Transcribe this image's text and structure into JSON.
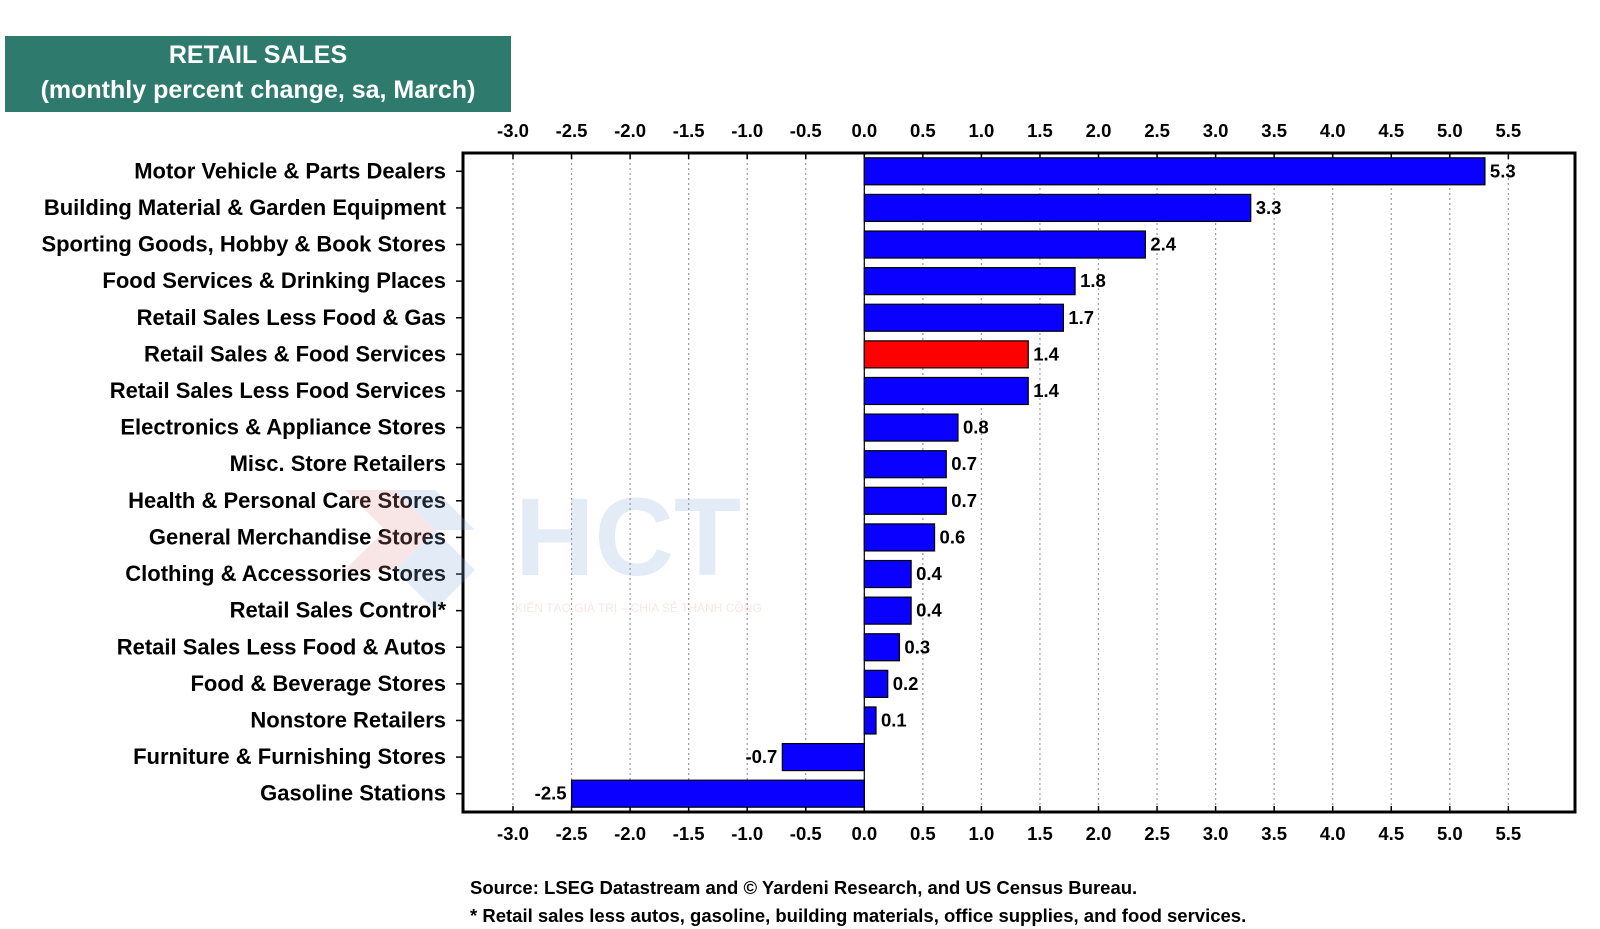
{
  "chart_data": {
    "type": "bar",
    "orientation": "horizontal",
    "title": "RETAIL SALES",
    "subtitle": "(monthly percent change, sa,  March)",
    "categories": [
      "Motor Vehicle & Parts Dealers",
      "Building Material & Garden Equipment",
      "Sporting Goods, Hobby & Book Stores",
      "Food Services & Drinking Places",
      "Retail Sales Less Food & Gas",
      "Retail Sales & Food Services",
      "Retail Sales Less Food Services",
      "Electronics & Appliance Stores",
      "Misc. Store Retailers",
      "Health & Personal Care Stores",
      "General Merchandise Stores",
      "Clothing & Accessories Stores",
      "Retail Sales Control*",
      "Retail Sales Less Food & Autos",
      "Food & Beverage Stores",
      "Nonstore Retailers",
      "Furniture & Furnishing Stores",
      "Gasoline Stations"
    ],
    "values": [
      5.3,
      3.3,
      2.4,
      1.8,
      1.7,
      1.4,
      1.4,
      0.8,
      0.7,
      0.7,
      0.6,
      0.4,
      0.4,
      0.3,
      0.2,
      0.1,
      -0.7,
      -2.5
    ],
    "value_labels": [
      "5.3",
      "3.3",
      "2.4",
      "1.8",
      "1.7",
      "1.4",
      "1.4",
      "0.8",
      "0.7",
      "0.7",
      "0.6",
      "0.4",
      "0.4",
      "0.3",
      "0.2",
      "0.1",
      "-0.7",
      "-2.5"
    ],
    "highlight_index": 5,
    "xlim": [
      -3.0,
      5.5
    ],
    "xticks": [
      "-3.0",
      "-2.5",
      "-2.0",
      "-1.5",
      "-1.0",
      "-0.5",
      "0.0",
      "0.5",
      "1.0",
      "1.5",
      "2.0",
      "2.5",
      "3.0",
      "3.5",
      "4.0",
      "4.5",
      "5.0",
      "5.5"
    ],
    "grid": true,
    "colors": {
      "bar": "#0a00ff",
      "highlight": "#ff0000",
      "title_bg": "#2e7b6e",
      "grid": "#9a9a9a"
    }
  },
  "footer": {
    "source": "Source: LSEG Datastream and © Yardeni Research, and US Census Bureau.",
    "note": "* Retail sales less autos, gasoline, building materials, office supplies, and food services."
  },
  "watermark": {
    "logo_text": "HCT",
    "tagline": "KIẾN TẠO GIÁ TRỊ – CHIA SẺ THÀNH CÔNG"
  }
}
